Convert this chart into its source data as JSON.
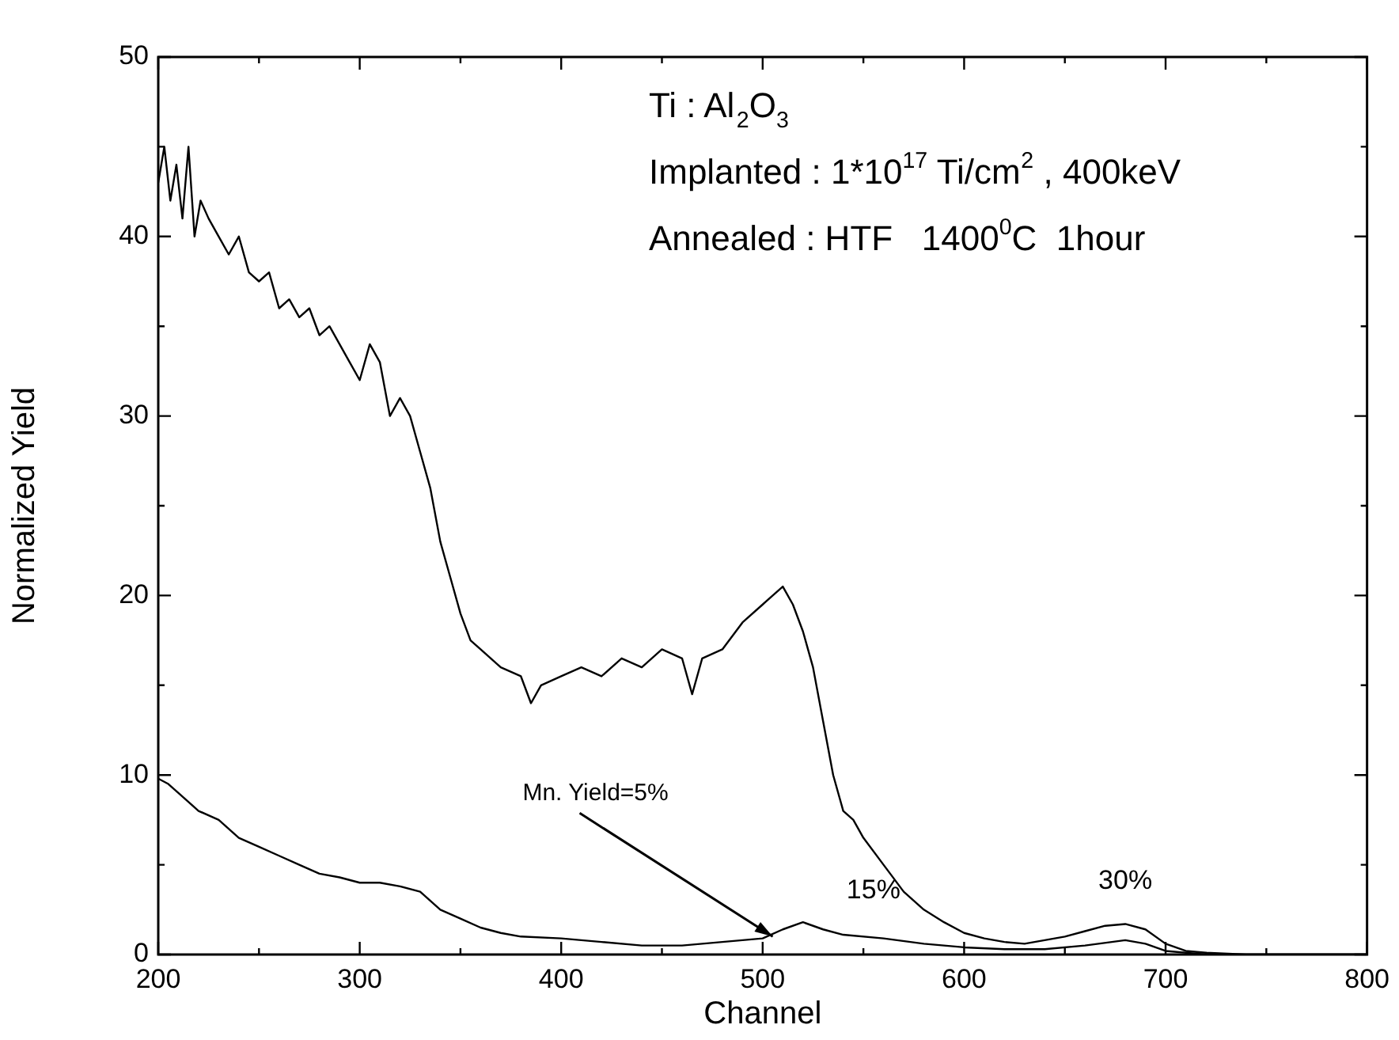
{
  "chart_data": {
    "type": "line",
    "xlabel": "Channel",
    "ylabel": "Normalized Yield",
    "xlim": [
      200,
      800
    ],
    "xticks": [
      200,
      {
        "value": 250,
        "label": null
      },
      300,
      {
        "value": 350,
        "label": null
      },
      400,
      {
        "value": 450,
        "label": null
      },
      500,
      {
        "value": 550,
        "label": null
      },
      600,
      {
        "value": 650,
        "label": null
      },
      700,
      {
        "value": 750,
        "label": null
      },
      800
    ],
    "ylim": [
      0,
      50
    ],
    "yticks": [
      0,
      {
        "value": 5,
        "label": null
      },
      10,
      {
        "value": 15,
        "label": null
      },
      20,
      {
        "value": 25,
        "label": null
      },
      30,
      {
        "value": 35,
        "label": null
      },
      40,
      {
        "value": 45,
        "label": null
      },
      50
    ],
    "grid": false,
    "legend": false,
    "marker": "none",
    "line_style": "solid",
    "series": [
      {
        "color": "#000000",
        "x": [
          200,
          203,
          206,
          209,
          212,
          215,
          218,
          221,
          225,
          230,
          235,
          240,
          245,
          250,
          255,
          260,
          265,
          270,
          275,
          280,
          285,
          290,
          295,
          300,
          305,
          310,
          315,
          320,
          325,
          330,
          335,
          340,
          345,
          350,
          355,
          360,
          370,
          380,
          385,
          390,
          400,
          410,
          420,
          430,
          440,
          450,
          460,
          465,
          470,
          480,
          490,
          500,
          505,
          510,
          515,
          520,
          525,
          530,
          535,
          540,
          545,
          550,
          560,
          570,
          580,
          590,
          600,
          610,
          620,
          630,
          640,
          650,
          660,
          670,
          680,
          690,
          700,
          710,
          720,
          740,
          800
        ],
        "values": [
          43,
          45,
          42,
          44,
          41,
          45,
          40,
          42,
          41,
          40,
          39,
          40,
          38,
          37.5,
          38,
          36,
          36.5,
          35.5,
          36,
          34.5,
          35,
          34,
          33,
          32,
          34,
          33,
          30,
          31,
          30,
          28,
          26,
          23,
          21,
          19,
          17.5,
          17,
          16,
          15.5,
          14,
          15,
          15.5,
          16,
          15.5,
          16.5,
          16,
          17,
          16.5,
          14.5,
          16.5,
          17,
          18.5,
          19.5,
          20,
          20.5,
          19.5,
          18,
          16,
          13,
          10,
          8,
          7.5,
          6.5,
          5,
          3.5,
          2.5,
          1.8,
          1.2,
          0.9,
          0.7,
          0.6,
          0.8,
          1,
          1.3,
          1.6,
          1.7,
          1.4,
          0.6,
          0.2,
          0.1,
          0,
          0
        ]
      },
      {
        "color": "#000000",
        "x": [
          200,
          205,
          210,
          220,
          230,
          240,
          250,
          260,
          270,
          280,
          290,
          300,
          310,
          320,
          330,
          340,
          350,
          360,
          370,
          380,
          400,
          420,
          440,
          460,
          480,
          500,
          510,
          520,
          530,
          540,
          560,
          580,
          600,
          620,
          640,
          660,
          680,
          690,
          700,
          720,
          800
        ],
        "values": [
          9.8,
          9.5,
          9,
          8,
          7.5,
          6.5,
          6,
          5.5,
          5,
          4.5,
          4.3,
          4,
          4,
          3.8,
          3.5,
          2.5,
          2,
          1.5,
          1.2,
          1,
          0.9,
          0.7,
          0.5,
          0.5,
          0.7,
          0.9,
          1.4,
          1.8,
          1.4,
          1.1,
          0.9,
          0.6,
          0.4,
          0.3,
          0.3,
          0.5,
          0.8,
          0.6,
          0.2,
          0,
          0
        ]
      }
    ],
    "annotations": [
      "Ti : Al$_{2}$O$_{3}$",
      "Implanted : 1*10$^{17}$ Ti/cm$^{2}$ , 400keV",
      "Annealed : HTF   1400$^{0}$C  1hour",
      {
        "text": "Mn. Yield=5%",
        "x": 505,
        "y": 1
      },
      {
        "text": "15%",
        "x": 555,
        "y": 1.2
      },
      {
        "text": "30%",
        "x": 680,
        "y": 1.7
      }
    ]
  }
}
